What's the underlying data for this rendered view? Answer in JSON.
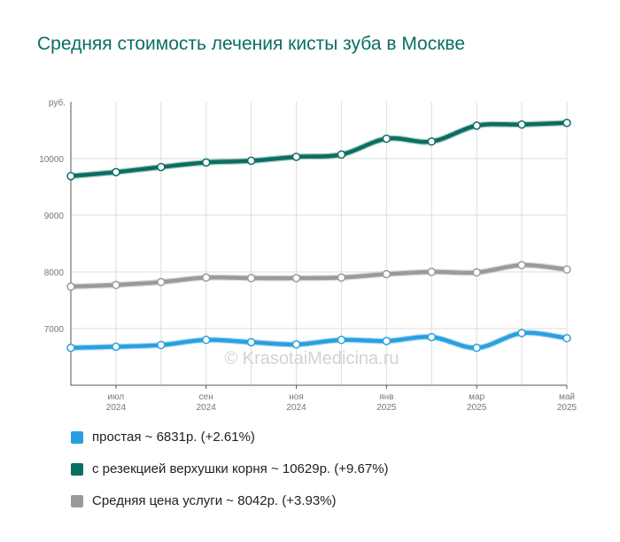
{
  "title": "Средняя стоимость лечения кисты зуба в Москве",
  "watermark": "© KrasotaiMedicina.ru",
  "chart_data": {
    "type": "line",
    "ylabel": "руб.",
    "ylim": [
      6000,
      11000
    ],
    "yticks": [
      "7000",
      "8000",
      "9000",
      "10000"
    ],
    "ytick_values": [
      7000,
      8000,
      9000,
      10000
    ],
    "xticks": [
      {
        "month": "июл",
        "year": "2024"
      },
      {
        "month": "сен",
        "year": "2024"
      },
      {
        "month": "ноя",
        "year": "2024"
      },
      {
        "month": "янв",
        "year": "2025"
      },
      {
        "month": "мар",
        "year": "2025"
      },
      {
        "month": "май",
        "year": "2025"
      }
    ],
    "x": [
      "2024-06",
      "2024-07",
      "2024-08",
      "2024-09",
      "2024-10",
      "2024-11",
      "2024-12",
      "2025-01",
      "2025-02",
      "2025-03",
      "2025-04",
      "2025-05"
    ],
    "grid": true,
    "legend_position": "bottom",
    "series": [
      {
        "name": "простая",
        "summary": "простая ~ 6831р. (+2.61%)",
        "color": "#2a9fe0",
        "values": [
          6660,
          6680,
          6710,
          6800,
          6760,
          6720,
          6800,
          6780,
          6850,
          6660,
          6920,
          6831
        ]
      },
      {
        "name": "с резекцией верхушки корня",
        "summary": "с резекцией верхушки корня ~ 10629р. (+9.67%)",
        "color": "#0b6e62",
        "values": [
          9690,
          9760,
          9850,
          9930,
          9960,
          10030,
          10070,
          10350,
          10300,
          10580,
          10600,
          10629
        ]
      },
      {
        "name": "Средняя цена услуги",
        "summary": "Средняя цена услуги ~ 8042р. (+3.93%)",
        "color": "#9a9a9a",
        "values": [
          7740,
          7770,
          7820,
          7900,
          7890,
          7890,
          7900,
          7960,
          8000,
          7990,
          8120,
          8042
        ]
      }
    ]
  }
}
